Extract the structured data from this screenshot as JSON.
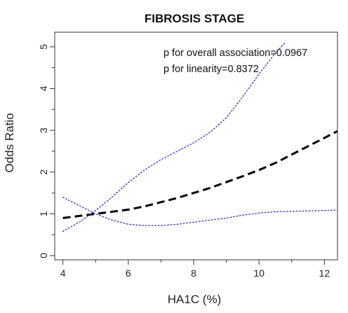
{
  "chart_data": {
    "type": "line",
    "title": "FIBROSIS STAGE",
    "xlabel": "HA1C (%)",
    "ylabel": "Odds Ratio",
    "xlim": [
      3.75,
      12.4
    ],
    "ylim": [
      -0.1,
      5.35
    ],
    "x_ticks": [
      4,
      6,
      8,
      10,
      12
    ],
    "y_ticks": [
      0,
      1,
      2,
      3,
      4,
      5
    ],
    "grid": false,
    "annotations": [
      "p for overall association=0.0967",
      "p for linearity=0.8372"
    ],
    "series": [
      {
        "role": "estimate",
        "style": "dashed",
        "color": "#000000",
        "x": [
          4,
          4.5,
          5,
          5.5,
          6,
          6.5,
          7,
          7.5,
          8,
          8.5,
          9,
          9.5,
          10,
          10.5,
          11,
          11.5,
          12,
          12.4
        ],
        "y": [
          0.9,
          0.95,
          1.0,
          1.05,
          1.1,
          1.18,
          1.28,
          1.38,
          1.5,
          1.62,
          1.76,
          1.9,
          2.05,
          2.22,
          2.42,
          2.62,
          2.82,
          2.98
        ]
      },
      {
        "role": "upper-ci",
        "style": "dotted",
        "color": "#3b3bd0",
        "x": [
          4,
          4.5,
          5,
          5.5,
          6,
          6.5,
          7,
          7.5,
          8,
          8.5,
          9,
          9.5,
          10,
          10.5,
          10.8
        ],
        "y": [
          0.58,
          0.8,
          1.08,
          1.4,
          1.75,
          2.05,
          2.3,
          2.5,
          2.7,
          2.95,
          3.3,
          3.8,
          4.35,
          4.85,
          5.1
        ]
      },
      {
        "role": "lower-ci",
        "style": "dotted",
        "color": "#3b3bd0",
        "x": [
          4,
          4.5,
          5,
          5.5,
          6,
          6.5,
          7,
          7.5,
          8,
          8.5,
          9,
          9.5,
          10,
          10.5,
          11,
          11.5,
          12,
          12.4
        ],
        "y": [
          1.4,
          1.2,
          1.0,
          0.85,
          0.75,
          0.72,
          0.72,
          0.75,
          0.8,
          0.85,
          0.9,
          0.97,
          1.02,
          1.05,
          1.06,
          1.07,
          1.08,
          1.09
        ]
      }
    ]
  }
}
